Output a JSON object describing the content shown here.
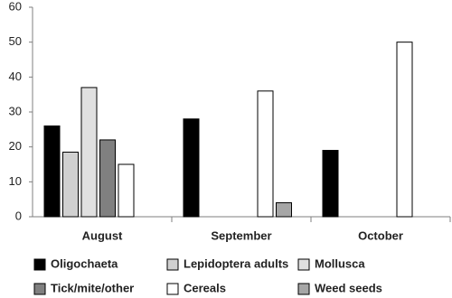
{
  "chart_data": {
    "type": "bar",
    "categories": [
      "August",
      "September",
      "October"
    ],
    "series": [
      {
        "name": "Oligochaeta",
        "color": "#000000",
        "values": [
          26,
          28,
          19
        ]
      },
      {
        "name": "Lepidoptera adults",
        "color": "#d0d0d0",
        "values": [
          18.5,
          null,
          null
        ]
      },
      {
        "name": "Mollusca",
        "color": "#e0e0e0",
        "values": [
          37,
          null,
          null
        ]
      },
      {
        "name": "Tick/mite/other",
        "color": "#808080",
        "values": [
          22,
          null,
          null
        ]
      },
      {
        "name": "Cereals",
        "color": "#ffffff",
        "values": [
          15,
          36,
          50
        ]
      },
      {
        "name": "Weed seeds",
        "color": "#a6a6a6",
        "values": [
          null,
          4,
          null
        ]
      }
    ],
    "ylim": [
      0,
      60
    ],
    "yticks": [
      0,
      10,
      20,
      30,
      40,
      50,
      60
    ],
    "grid": false
  }
}
